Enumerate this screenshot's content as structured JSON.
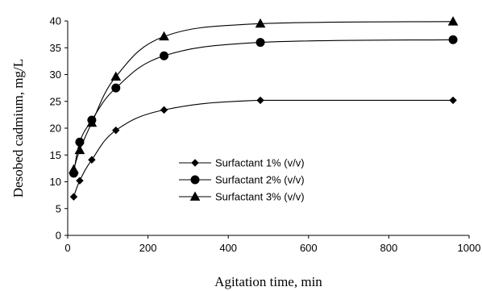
{
  "chart_data": {
    "type": "line",
    "xlabel": "Agitation time, min",
    "ylabel": "Desobed cadmium, mg/L",
    "xlim": [
      0,
      1000
    ],
    "ylim": [
      0,
      40
    ],
    "xticks": [
      0,
      200,
      400,
      600,
      800,
      1000
    ],
    "yticks": [
      0,
      5,
      10,
      15,
      20,
      25,
      30,
      35,
      40
    ],
    "grid": false,
    "legend_position": "center-right",
    "series": [
      {
        "name": "Surfactant 1% (v/v)",
        "marker": "diamond",
        "x": [
          15,
          30,
          60,
          120,
          240,
          480,
          960
        ],
        "y": [
          7.2,
          10.2,
          14.1,
          19.6,
          23.4,
          25.2,
          25.2
        ]
      },
      {
        "name": "Surfactant 2% (v/v)",
        "marker": "circle",
        "x": [
          15,
          30,
          60,
          120,
          240,
          480,
          960
        ],
        "y": [
          11.6,
          17.4,
          21.5,
          27.5,
          33.5,
          36.0,
          36.5
        ]
      },
      {
        "name": "Surfactant 3% (v/v)",
        "marker": "triangle",
        "x": [
          15,
          30,
          60,
          120,
          240,
          480,
          960
        ],
        "y": [
          12.3,
          15.9,
          21.0,
          29.6,
          37.1,
          39.5,
          39.9
        ]
      }
    ]
  }
}
